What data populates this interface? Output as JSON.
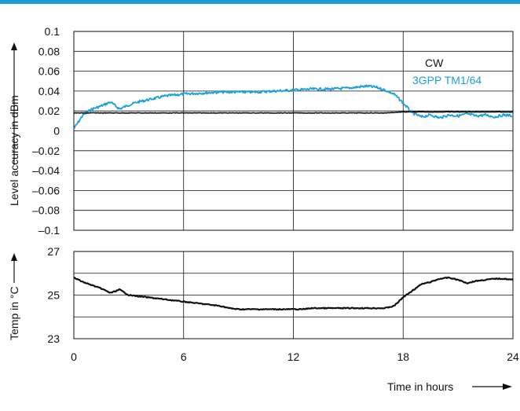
{
  "colors": {
    "top_bar": "#1a9ad6",
    "cw": "#111111",
    "tm": "#1ba0d8",
    "grid": "#111111"
  },
  "chart_data": [
    {
      "type": "line",
      "ylabel": "Level accuracy in dBm",
      "xlim": [
        0,
        24
      ],
      "ylim": [
        -0.1,
        0.1
      ],
      "y_ticks": [
        "0.1",
        "0.08",
        "0.06",
        "0.04",
        "0.02",
        "0",
        "–0.02",
        "–0.04",
        "–0.06",
        "–0.08",
        "–0.1"
      ],
      "y_tick_values": [
        0.1,
        0.08,
        0.06,
        0.04,
        0.02,
        0,
        -0.02,
        -0.04,
        -0.06,
        -0.08,
        -0.1
      ],
      "grid": true,
      "legend_position": "top-right",
      "series": [
        {
          "name": "CW",
          "color": "#111111",
          "x": [
            0,
            1,
            2,
            3,
            4,
            5,
            6,
            7,
            8,
            9,
            10,
            11,
            12,
            13,
            14,
            15,
            16,
            17,
            18,
            19,
            20,
            21,
            22,
            23,
            24
          ],
          "values": [
            0.018,
            0.018,
            0.018,
            0.018,
            0.018,
            0.018,
            0.018,
            0.018,
            0.018,
            0.018,
            0.018,
            0.018,
            0.018,
            0.018,
            0.018,
            0.018,
            0.018,
            0.018,
            0.019,
            0.019,
            0.019,
            0.019,
            0.019,
            0.019,
            0.019
          ]
        },
        {
          "name": "3GPP TM1/64",
          "color": "#1ba0d8",
          "x": [
            0,
            0.5,
            1,
            1.5,
            2,
            2.5,
            3,
            3.5,
            4,
            4.5,
            5,
            5.5,
            6,
            7,
            8,
            9,
            10,
            11,
            12,
            13,
            14,
            15,
            16,
            16.5,
            17,
            17.5,
            18,
            18.5,
            19,
            19.5,
            20,
            20.5,
            21,
            21.5,
            22,
            22.5,
            23,
            23.5,
            24
          ],
          "values": [
            0.002,
            0.016,
            0.022,
            0.025,
            0.029,
            0.022,
            0.026,
            0.029,
            0.031,
            0.033,
            0.035,
            0.036,
            0.037,
            0.038,
            0.039,
            0.039,
            0.039,
            0.04,
            0.041,
            0.042,
            0.042,
            0.043,
            0.045,
            0.044,
            0.041,
            0.037,
            0.028,
            0.018,
            0.014,
            0.016,
            0.013,
            0.016,
            0.015,
            0.017,
            0.015,
            0.016,
            0.014,
            0.016,
            0.015
          ]
        }
      ]
    },
    {
      "type": "line",
      "xlabel": "Time in hours",
      "ylabel": "Temp in °C",
      "xlim": [
        0,
        24
      ],
      "ylim": [
        23,
        27
      ],
      "x_ticks": [
        "0",
        "6",
        "12",
        "18",
        "24"
      ],
      "x_tick_values": [
        0,
        6,
        12,
        18,
        24
      ],
      "y_ticks": [
        "27",
        "25",
        "23"
      ],
      "y_tick_values": [
        27,
        25,
        23
      ],
      "grid": true,
      "series": [
        {
          "color": "#111111",
          "x": [
            0,
            0.5,
            1,
            1.5,
            2,
            2.5,
            3,
            3.5,
            4,
            5,
            6,
            7,
            8,
            8.5,
            9,
            10,
            11,
            12,
            12.5,
            13,
            14,
            15,
            16,
            17,
            17.5,
            18,
            18.5,
            19,
            19.5,
            20,
            20.5,
            21,
            21.5,
            22,
            22.5,
            23,
            23.5,
            24
          ],
          "values": [
            25.8,
            25.6,
            25.45,
            25.3,
            25.1,
            25.25,
            25.0,
            24.95,
            24.9,
            24.8,
            24.7,
            24.6,
            24.5,
            24.4,
            24.35,
            24.35,
            24.35,
            24.35,
            24.35,
            24.4,
            24.4,
            24.4,
            24.4,
            24.4,
            24.5,
            24.9,
            25.2,
            25.5,
            25.6,
            25.75,
            25.8,
            25.7,
            25.55,
            25.65,
            25.7,
            25.75,
            25.75,
            25.7
          ]
        }
      ]
    }
  ]
}
